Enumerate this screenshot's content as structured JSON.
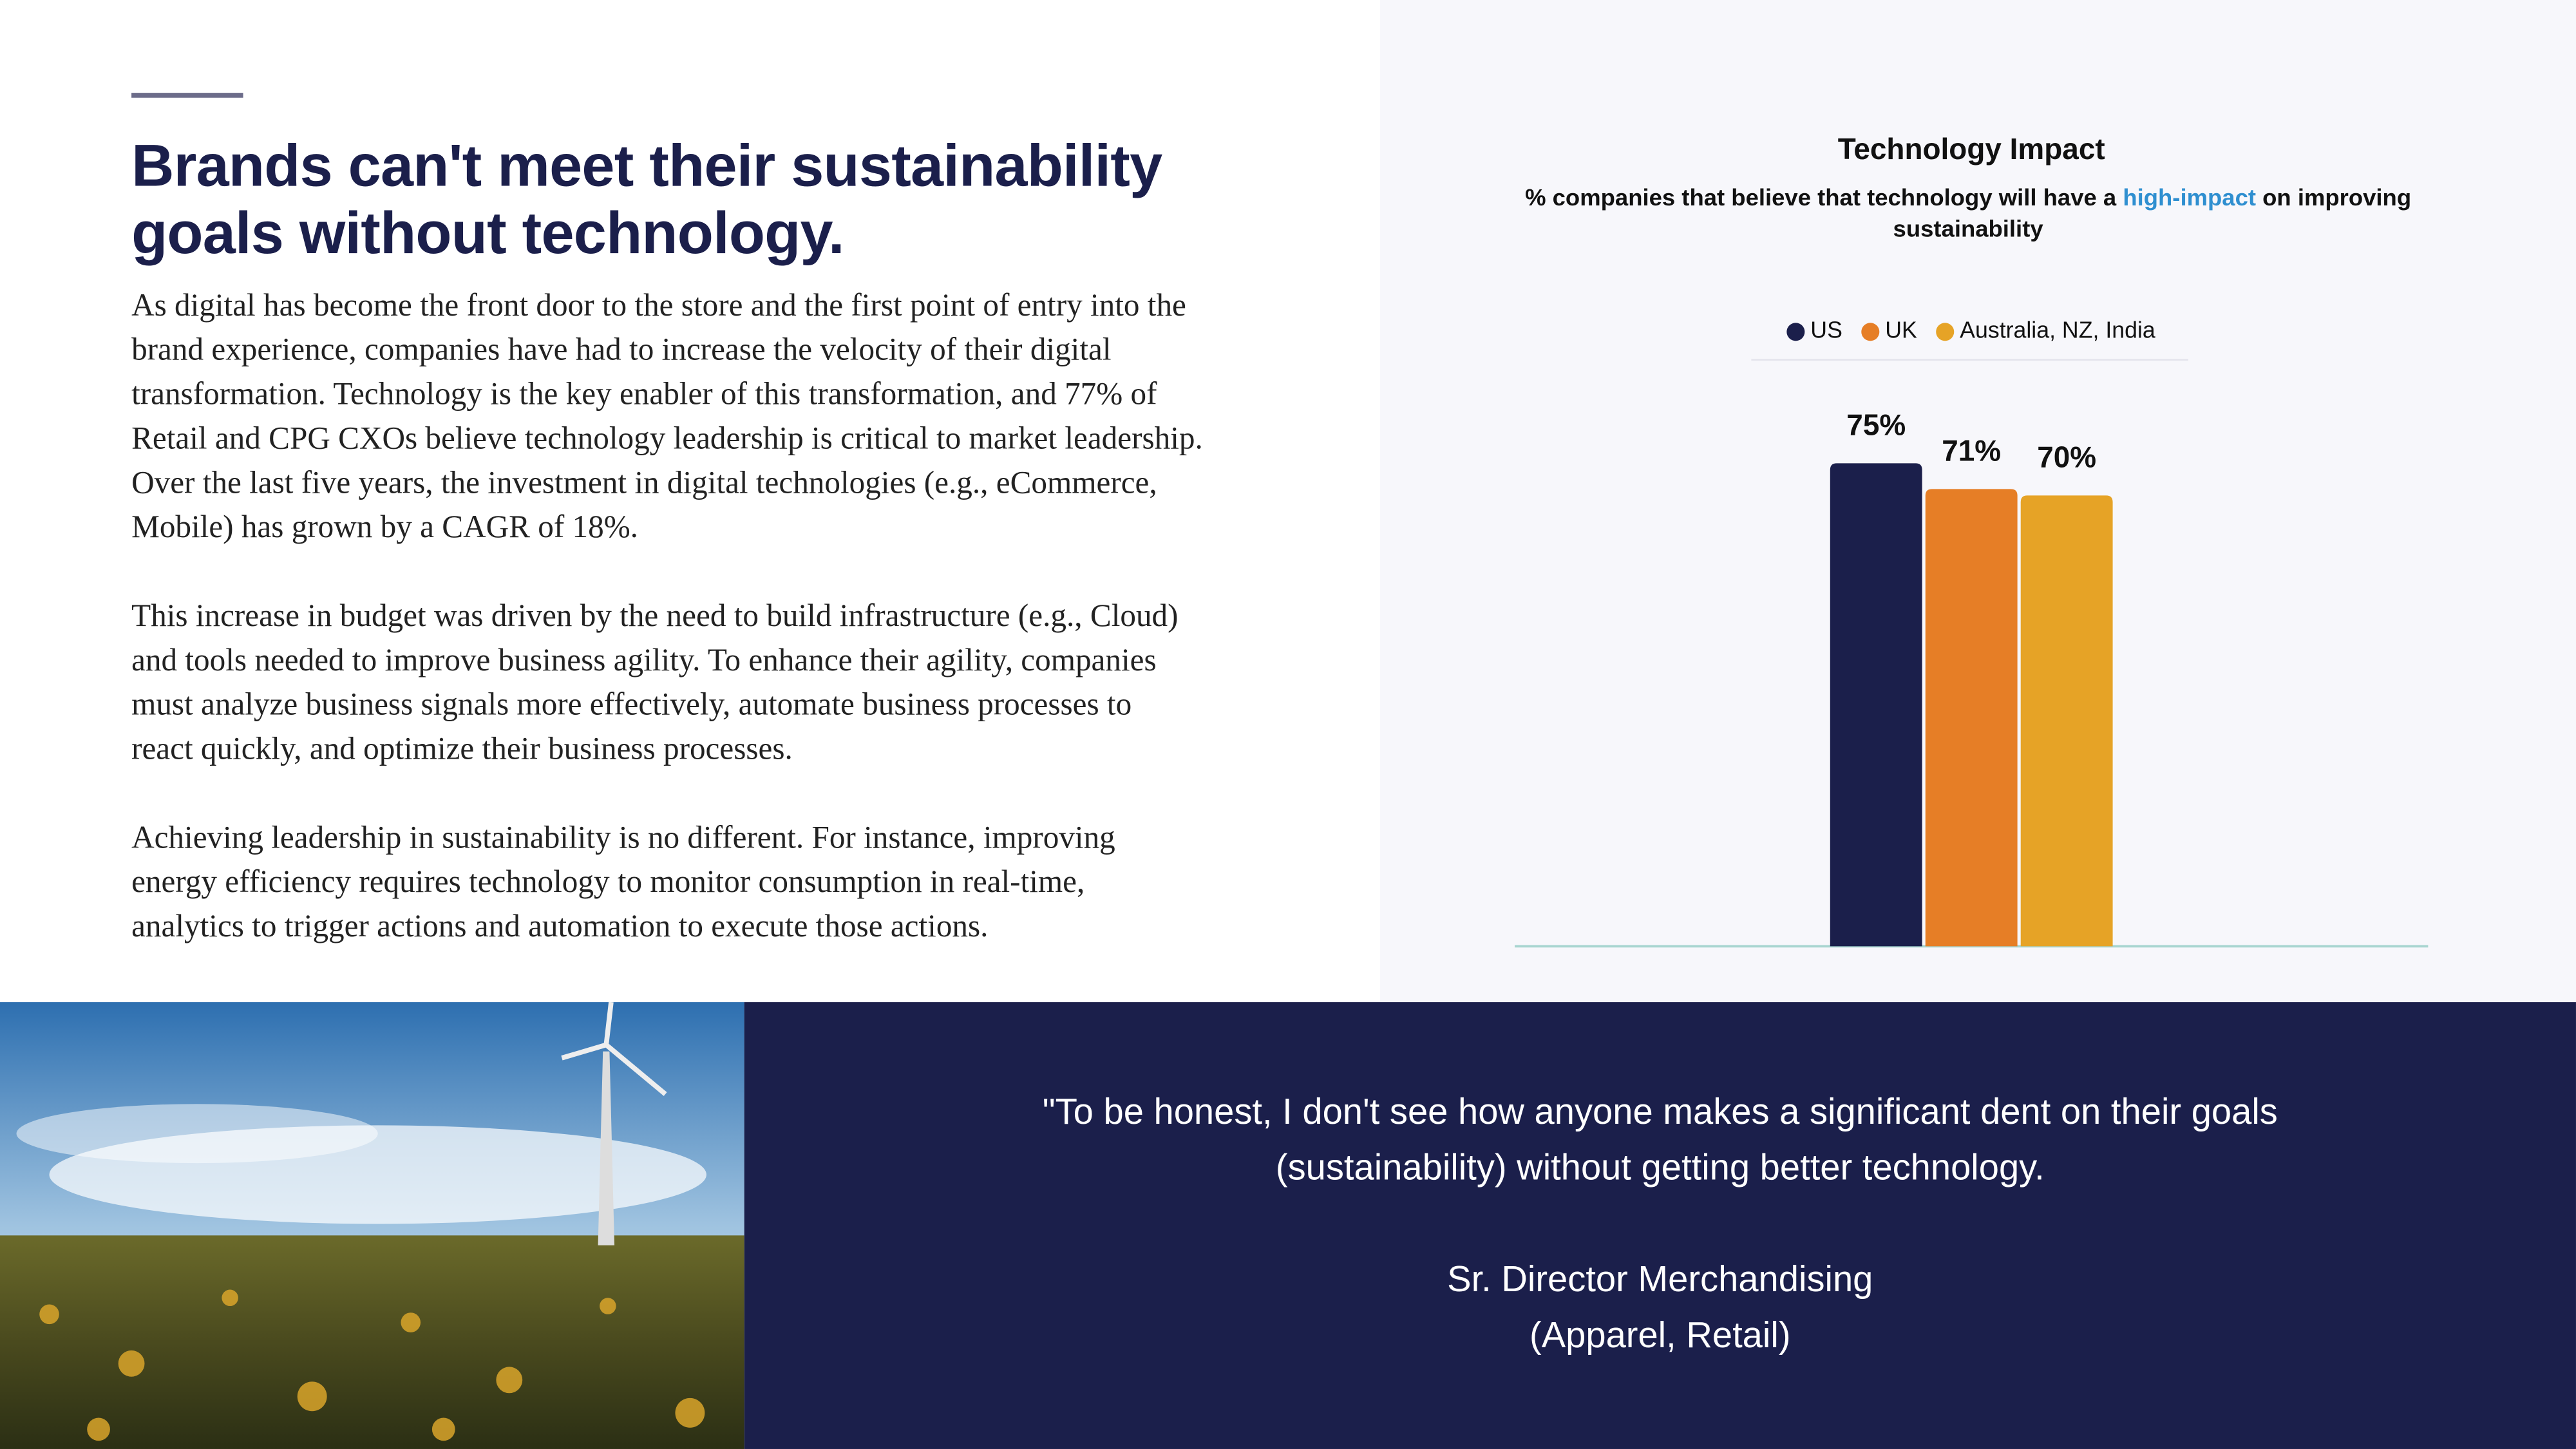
{
  "header": {
    "title": "Brands can't meet their sustainability goals without technology."
  },
  "paragraphs": [
    [
      "As digital has become the front door to the store and the first point of entry into the",
      "brand experience, companies have had to increase the velocity of their digital",
      "transformation. Technology is the key enabler of this transformation, and 77% of",
      "Retail and CPG CXOs believe technology leadership is critical to market leadership.",
      "Over the last five years, the investment in digital technologies (e.g., eCommerce,",
      "Mobile) has grown by a CAGR of 18%."
    ],
    [
      "This increase in budget was driven by the need to build infrastructure (e.g., Cloud)",
      "and tools needed to improve business agility. To enhance their agility, companies",
      "must analyze business signals more effectively, automate business processes to",
      "react quickly, and optimize their business processes."
    ],
    [
      "Achieving leadership in sustainability is no different. For instance, improving",
      "energy efficiency requires technology to monitor consumption in real-time,",
      "analytics to trigger actions and automation to execute those actions."
    ]
  ],
  "chart_data": {
    "type": "bar",
    "title": "Technology Impact",
    "subtitle": [
      "% companies that believe that technology will have a ",
      "high-impact",
      " on improving sustainability"
    ],
    "categories": [
      null
    ],
    "series": [
      {
        "name": "US",
        "color": "#1b1f4b",
        "values": [
          75
        ],
        "value_labels": [
          "75%"
        ]
      },
      {
        "name": "UK",
        "color": "#e67e26",
        "values": [
          71
        ],
        "value_labels": [
          "71%"
        ]
      },
      {
        "name": "Australia, NZ, India",
        "color": "#e6a326",
        "values": [
          70
        ],
        "value_labels": [
          "70%"
        ]
      }
    ],
    "ylim": [
      0,
      100
    ]
  },
  "quote": {
    "lines": [
      "\"To be honest, I don't see how anyone makes a significant dent on their goals",
      "(sustainability) without getting better technology."
    ],
    "attribution": [
      "Sr. Director Merchandising",
      "(Apparel, Retail)"
    ]
  }
}
